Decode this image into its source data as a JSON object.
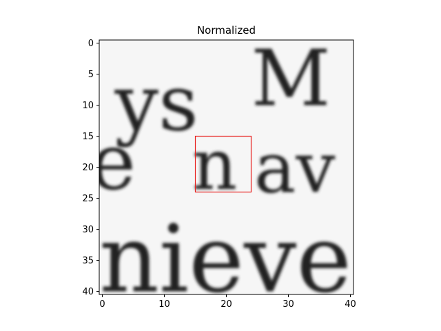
{
  "chart_data": {
    "type": "heatmap",
    "title": "Normalized",
    "xlabel": "",
    "ylabel": "",
    "x_range": [
      -0.5,
      40.5
    ],
    "y_range": [
      40.5,
      -0.5
    ],
    "x_ticks": [
      0,
      10,
      20,
      30,
      40
    ],
    "y_ticks": [
      0,
      5,
      10,
      15,
      20,
      25,
      30,
      35,
      40
    ],
    "colormap": "grayscale",
    "grid": false,
    "highlight_box": {
      "x0": 15,
      "y0": 15,
      "x1": 24,
      "y1": 24,
      "color": "#e8201e"
    },
    "text_fragments": [
      {
        "text": "ys",
        "col": 2.5,
        "row": 4.5,
        "h": 10
      },
      {
        "text": "M",
        "col": 24.5,
        "row": 0.5,
        "h": 10
      },
      {
        "text": "e",
        "col": -1.5,
        "row": 14.0,
        "h": 10
      },
      {
        "text": "n",
        "col": 15,
        "row": 15,
        "h": 9
      },
      {
        "text": "av",
        "col": 25,
        "row": 15.5,
        "h": 9
      },
      {
        "text": "nieves",
        "col": 0,
        "row": 28.5,
        "h": 12
      }
    ]
  }
}
